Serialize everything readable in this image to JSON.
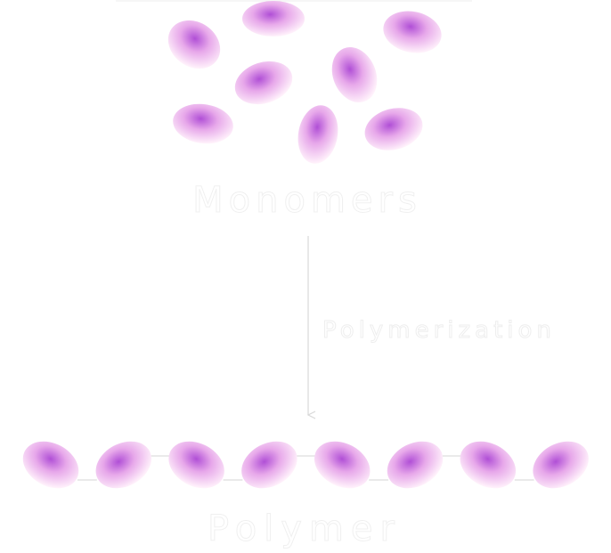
{
  "labels": {
    "monomers": "Monomers",
    "process": "Polymerization",
    "polymer": "Polymer"
  },
  "colors": {
    "background": "#ffffff",
    "bead_core": "#b04fd6",
    "bead_mid": "#e7a8ea",
    "bead_edge": "#fff2fb",
    "label_fill": "#ffffff",
    "label_stroke": "#f2f2f2",
    "arrow": "#d8d8d8",
    "bond": "#d6d6d6"
  },
  "diagram": {
    "monomer_count": 8,
    "polymer_bead_count": 8
  }
}
